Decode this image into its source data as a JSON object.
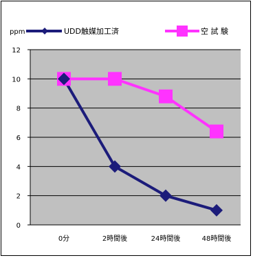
{
  "chart_data": {
    "type": "line",
    "categories": [
      "0分",
      "2時間後",
      "24時間後",
      "48時間後"
    ],
    "series": [
      {
        "name": "UDD触媒加工済",
        "values": [
          10,
          4,
          2,
          1
        ],
        "color": "#1c1c7a",
        "marker": "diamond"
      },
      {
        "name": "空 試 験",
        "values": [
          10,
          10,
          8.8,
          6.4
        ],
        "color": "#ff33ff",
        "marker": "square"
      }
    ],
    "ylabel": "ppm",
    "ylim": [
      0,
      12
    ],
    "yticks": [
      "0",
      "2",
      "4",
      "6",
      "8",
      "10",
      "12"
    ],
    "grid": true,
    "plot_bg": "#c0c0c0",
    "legend_position": "top"
  }
}
